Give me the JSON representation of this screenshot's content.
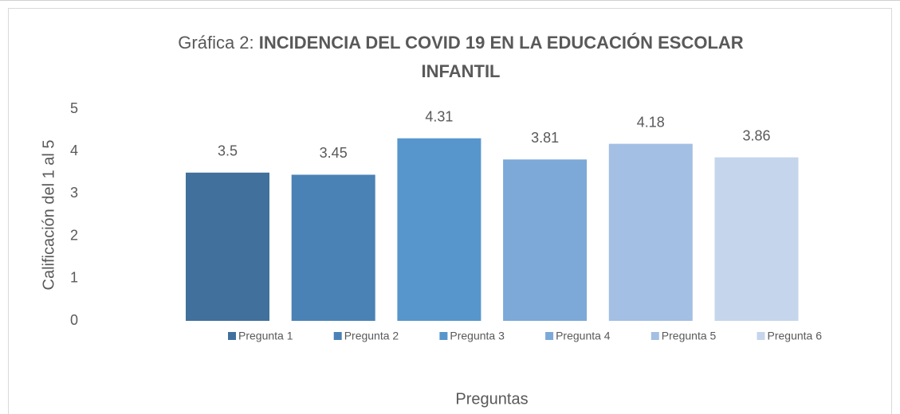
{
  "chart_data": {
    "type": "bar",
    "title": {
      "prefix": "Gráfica 2:",
      "main": "INCIDENCIA DEL COVID 19 EN LA EDUCACIÓN ESCOLAR INFANTIL"
    },
    "y_label": "Calificación del 1 al 5",
    "x_label": "Preguntas",
    "series": [
      {
        "name": "Pregunta 1",
        "color": "#41709c",
        "values": [
          3.5
        ]
      },
      {
        "name": "Pregunta 2",
        "color": "#4a82b6",
        "values": [
          3.45
        ]
      },
      {
        "name": "Pregunta 3",
        "color": "#5796cc",
        "values": [
          4.31
        ]
      },
      {
        "name": "Pregunta 4",
        "color": "#7ca9d8",
        "values": [
          3.81
        ]
      },
      {
        "name": "Pregunta 5",
        "color": "#a3bfe3",
        "values": [
          4.18
        ]
      },
      {
        "name": "Pregunta 6",
        "color": "#c5d5ec",
        "values": [
          3.86
        ]
      }
    ],
    "ylim": [
      0,
      5
    ],
    "yticks": [
      0,
      1,
      2,
      3,
      4,
      5
    ],
    "grid": false,
    "legend": "bottom"
  }
}
